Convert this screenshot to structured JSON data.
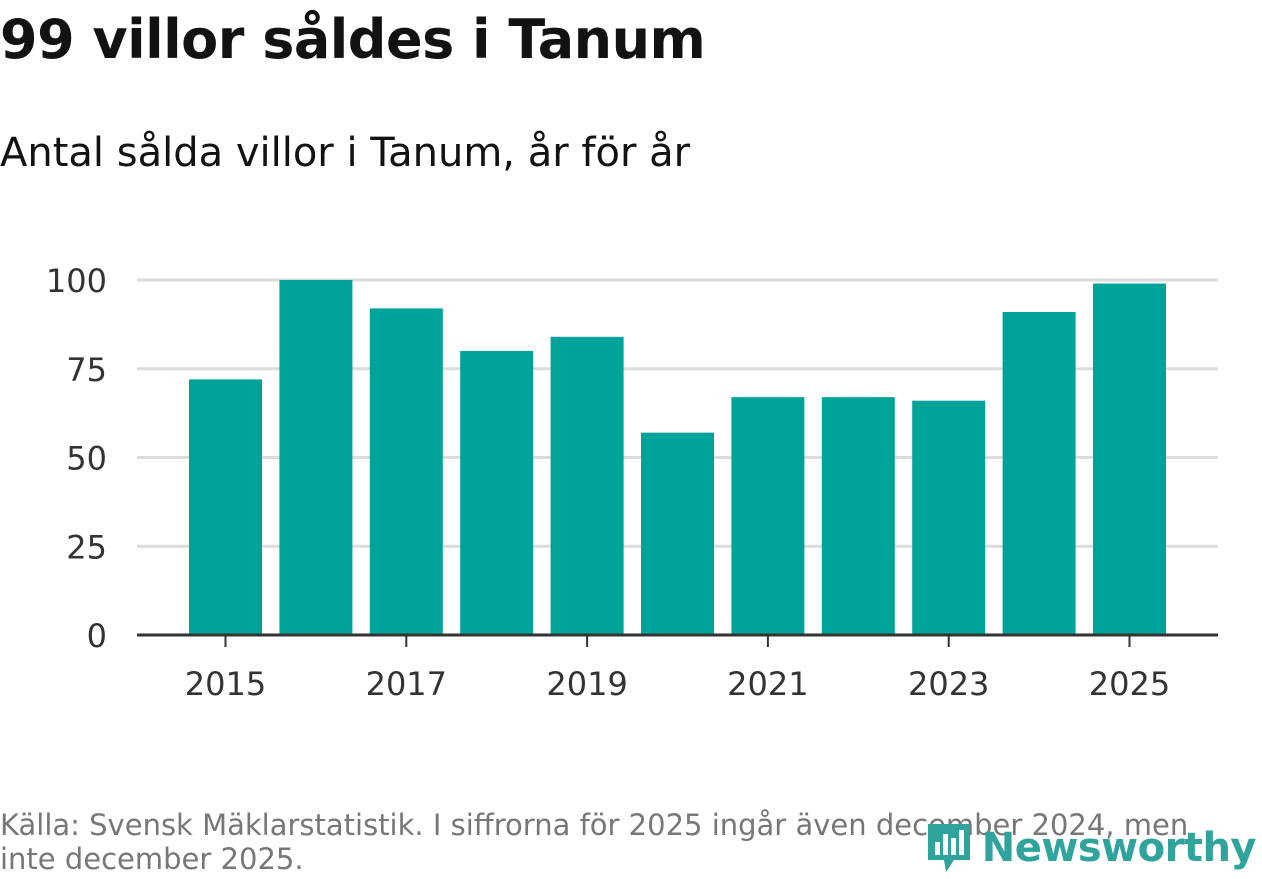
{
  "header": {
    "title": "99 villor såldes i Tanum",
    "subtitle": "Antal sålda villor i Tanum, år för år"
  },
  "chart_data": {
    "type": "bar",
    "categories": [
      "2015",
      "2016",
      "2017",
      "2018",
      "2019",
      "2020",
      "2021",
      "2022",
      "2023",
      "2024",
      "2025"
    ],
    "values": [
      72,
      100,
      92,
      80,
      84,
      57,
      67,
      67,
      66,
      91,
      99
    ],
    "x_tick_labels": [
      "2015",
      "2017",
      "2019",
      "2021",
      "2023",
      "2025"
    ],
    "y_ticks": [
      0,
      25,
      50,
      75,
      100
    ],
    "ylim": [
      0,
      100
    ],
    "xlabel": "",
    "ylabel": "",
    "grid": true,
    "bar_color": "#00a39a"
  },
  "footer": {
    "source": "Källa: Svensk Mäklarstatistik. I siffrorna för 2025 ingår även december 2024, men inte december 2025."
  },
  "branding": {
    "logo_text": "Newsworthy",
    "logo_icon": "newsworthy-bar-chart-icon",
    "logo_color": "#2fa39c"
  }
}
